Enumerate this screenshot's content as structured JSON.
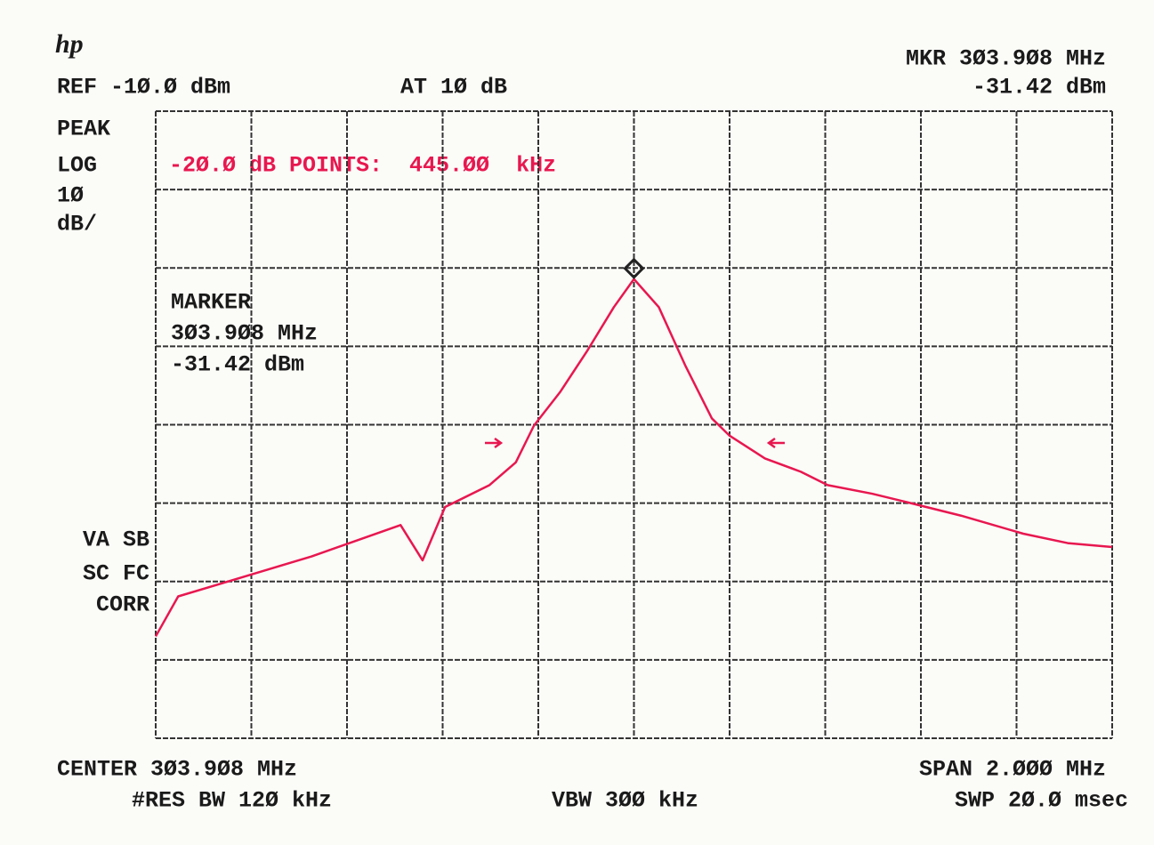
{
  "chart_data": {
    "type": "line",
    "logo": "hp",
    "header": {
      "ref": "REF -1Ø.Ø dBm",
      "atten": "AT 1Ø dB",
      "marker_freq": "MKR 3Ø3.9Ø8 MHz",
      "marker_level": "-31.42 dBm"
    },
    "side_labels": [
      "PEAK",
      "LOG",
      "1Ø",
      "dB/"
    ],
    "status_labels": [
      "VA SB",
      "SC FC",
      "CORR"
    ],
    "annotation": "-2Ø.Ø dB POINTS:  445.ØØ  kHz",
    "marker_box": [
      "MARKER",
      "3Ø3.9Ø8 MHz",
      "-31.42 dBm"
    ],
    "footer": {
      "center": "CENTER 3Ø3.9Ø8 MHz",
      "span": "SPAN 2.ØØØ MHz",
      "rbw": "#RES BW 12Ø kHz",
      "vbw": "VBW 3ØØ kHz",
      "sweep": "SWP 2Ø.Ø msec"
    },
    "marker": {
      "x": 303.908,
      "y": -31.42
    },
    "x": [
      302.908,
      302.955,
      303.048,
      303.141,
      303.234,
      303.327,
      303.42,
      303.466,
      303.513,
      303.606,
      303.661,
      303.699,
      303.754,
      303.81,
      303.866,
      303.908,
      303.96,
      304.015,
      304.071,
      304.108,
      304.182,
      304.257,
      304.313,
      304.406,
      304.48,
      304.592,
      304.722,
      304.815,
      304.908
    ],
    "series": [
      {
        "color": "#e8174f",
        "values": [
          -77.0,
          -71.9,
          -70.2,
          -68.5,
          -66.8,
          -64.8,
          -62.8,
          -67.3,
          -60.5,
          -57.7,
          -54.8,
          -50.1,
          -45.8,
          -40.6,
          -35.0,
          -31.42,
          -35.0,
          -42.4,
          -49.2,
          -51.4,
          -54.3,
          -56.0,
          -57.7,
          -58.8,
          -59.9,
          -61.6,
          -63.9,
          -65.1,
          -65.6
        ]
      }
    ],
    "xlim": [
      302.908,
      304.908
    ],
    "xticks": [
      302.908,
      303.108,
      303.308,
      303.508,
      303.708,
      303.908,
      304.108,
      304.308,
      304.508,
      304.708,
      304.908
    ],
    "ylim": [
      -90,
      -10
    ],
    "yticks": [
      -90,
      -80,
      -70,
      -60,
      -50,
      -40,
      -30,
      -20,
      -10
    ],
    "grid": true
  }
}
